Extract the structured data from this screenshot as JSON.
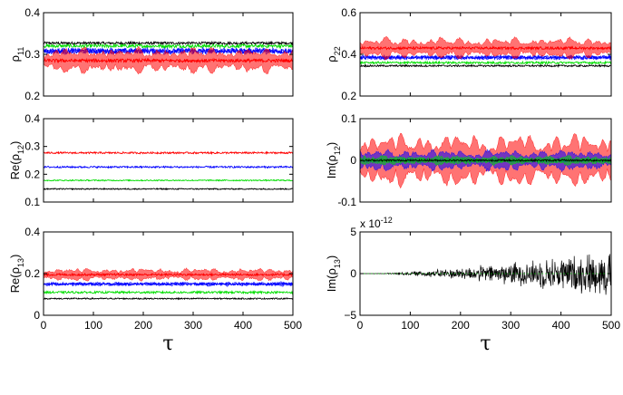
{
  "chart_data": [
    {
      "type": "line",
      "panel": "rho11",
      "ylabel_base": "ρ",
      "ylabel_sub": "11",
      "ylabel_pre": "",
      "ylabel_post": "",
      "xlim": [
        0,
        500
      ],
      "ylim": [
        0.2,
        0.4
      ],
      "xticks": [
        0,
        100,
        200,
        300,
        400,
        500
      ],
      "show_xticklabels": false,
      "yticks": [
        "0.2",
        "0.3",
        "0.4"
      ],
      "yticks_values": [
        0.2,
        0.3,
        0.4
      ],
      "series": [
        {
          "name": "black",
          "color": "#000000",
          "mean": 0.327,
          "spread": 0.003,
          "env": 0
        },
        {
          "name": "green",
          "color": "#00dd00",
          "mean": 0.32,
          "spread": 0.004,
          "env": 0
        },
        {
          "name": "blue",
          "color": "#0000ff",
          "mean": 0.308,
          "spread": 0.006,
          "env": 0.004
        },
        {
          "name": "red",
          "color": "#ff0000",
          "mean": 0.285,
          "spread": 0.004,
          "env": 0.03
        }
      ]
    },
    {
      "type": "line",
      "panel": "rho22",
      "ylabel_base": "ρ",
      "ylabel_sub": "22",
      "ylabel_pre": "",
      "ylabel_post": "",
      "xlim": [
        0,
        500
      ],
      "ylim": [
        0.2,
        0.6
      ],
      "xticks": [
        0,
        100,
        200,
        300,
        400,
        500
      ],
      "show_xticklabels": false,
      "yticks": [
        "0.2",
        "0.4",
        "0.6"
      ],
      "yticks_values": [
        0.2,
        0.4,
        0.6
      ],
      "series": [
        {
          "name": "black",
          "color": "#000000",
          "mean": 0.345,
          "spread": 0.004,
          "env": 0
        },
        {
          "name": "green",
          "color": "#00dd00",
          "mean": 0.36,
          "spread": 0.005,
          "env": 0
        },
        {
          "name": "blue",
          "color": "#0000ff",
          "mean": 0.385,
          "spread": 0.008,
          "env": 0.006
        },
        {
          "name": "red",
          "color": "#ff0000",
          "mean": 0.43,
          "spread": 0.006,
          "env": 0.05
        }
      ]
    },
    {
      "type": "line",
      "panel": "re_rho12",
      "ylabel_base": "ρ",
      "ylabel_sub": "12",
      "ylabel_pre": "Re(",
      "ylabel_post": ")",
      "xlim": [
        0,
        500
      ],
      "ylim": [
        0.1,
        0.4
      ],
      "xticks": [
        0,
        100,
        200,
        300,
        400,
        500
      ],
      "show_xticklabels": false,
      "yticks": [
        "0.1",
        "0.2",
        "0.3",
        "0.4"
      ],
      "yticks_values": [
        0.1,
        0.2,
        0.3,
        0.4
      ],
      "series": [
        {
          "name": "black",
          "color": "#000000",
          "mean": 0.147,
          "spread": 0.002,
          "env": 0
        },
        {
          "name": "green",
          "color": "#00dd00",
          "mean": 0.178,
          "spread": 0.002,
          "env": 0
        },
        {
          "name": "blue",
          "color": "#0000ff",
          "mean": 0.226,
          "spread": 0.003,
          "env": 0
        },
        {
          "name": "red",
          "color": "#ff0000",
          "mean": 0.277,
          "spread": 0.003,
          "env": 0
        }
      ]
    },
    {
      "type": "line",
      "panel": "im_rho12",
      "ylabel_base": "ρ",
      "ylabel_sub": "12",
      "ylabel_pre": "Im(",
      "ylabel_post": ")",
      "xlim": [
        0,
        500
      ],
      "ylim": [
        -0.1,
        0.1
      ],
      "xticks": [
        0,
        100,
        200,
        300,
        400,
        500
      ],
      "show_xticklabels": false,
      "yticks": [
        "-0.1",
        "0",
        "0.1"
      ],
      "yticks_values": [
        -0.1,
        0,
        0.1
      ],
      "series": [
        {
          "name": "red",
          "color": "#ff0000",
          "mean": 0.0,
          "spread": 0.004,
          "env": 0.065
        },
        {
          "name": "blue",
          "color": "#0000ff",
          "mean": 0.0,
          "spread": 0.004,
          "env": 0.025
        },
        {
          "name": "green",
          "color": "#00dd00",
          "mean": 0.0,
          "spread": 0.003,
          "env": 0.01
        },
        {
          "name": "black",
          "color": "#000000",
          "mean": 0.0,
          "spread": 0.002,
          "env": 0
        }
      ]
    },
    {
      "type": "line",
      "panel": "re_rho13",
      "ylabel_base": "ρ",
      "ylabel_sub": "13",
      "ylabel_pre": "Re(",
      "ylabel_post": ")",
      "xlim": [
        0,
        500
      ],
      "ylim": [
        0,
        0.4
      ],
      "xticks": [
        0,
        100,
        200,
        300,
        400,
        500
      ],
      "show_xticklabels": true,
      "xticklabels": [
        "0",
        "100",
        "200",
        "300",
        "400",
        "500"
      ],
      "yticks": [
        "0",
        "0.2",
        "0.4"
      ],
      "yticks_values": [
        0,
        0.2,
        0.4
      ],
      "xlabel": "τ",
      "series": [
        {
          "name": "black",
          "color": "#000000",
          "mean": 0.08,
          "spread": 0.003,
          "env": 0
        },
        {
          "name": "green",
          "color": "#00dd00",
          "mean": 0.11,
          "spread": 0.005,
          "env": 0
        },
        {
          "name": "blue",
          "color": "#0000ff",
          "mean": 0.15,
          "spread": 0.006,
          "env": 0.006
        },
        {
          "name": "red",
          "color": "#ff0000",
          "mean": 0.195,
          "spread": 0.005,
          "env": 0.03
        }
      ]
    },
    {
      "type": "line",
      "panel": "im_rho13",
      "ylabel_base": "ρ",
      "ylabel_sub": "13",
      "ylabel_pre": "Im(",
      "ylabel_post": ")",
      "xlim": [
        0,
        500
      ],
      "ylim": [
        -5,
        5
      ],
      "xticks": [
        0,
        100,
        200,
        300,
        400,
        500
      ],
      "show_xticklabels": true,
      "xticklabels": [
        "0",
        "100",
        "200",
        "300",
        "400",
        "500"
      ],
      "yticks": [
        "−5",
        "0",
        "5"
      ],
      "yticks_values": [
        -5,
        0,
        5
      ],
      "multiplier": "x 10",
      "multiplier_exp": "-12",
      "xlabel": "τ",
      "series": [
        {
          "name": "black",
          "color": "#000000",
          "mean": 0.0,
          "spread": 0.0,
          "env": 0,
          "growing": 3.2
        }
      ]
    }
  ]
}
